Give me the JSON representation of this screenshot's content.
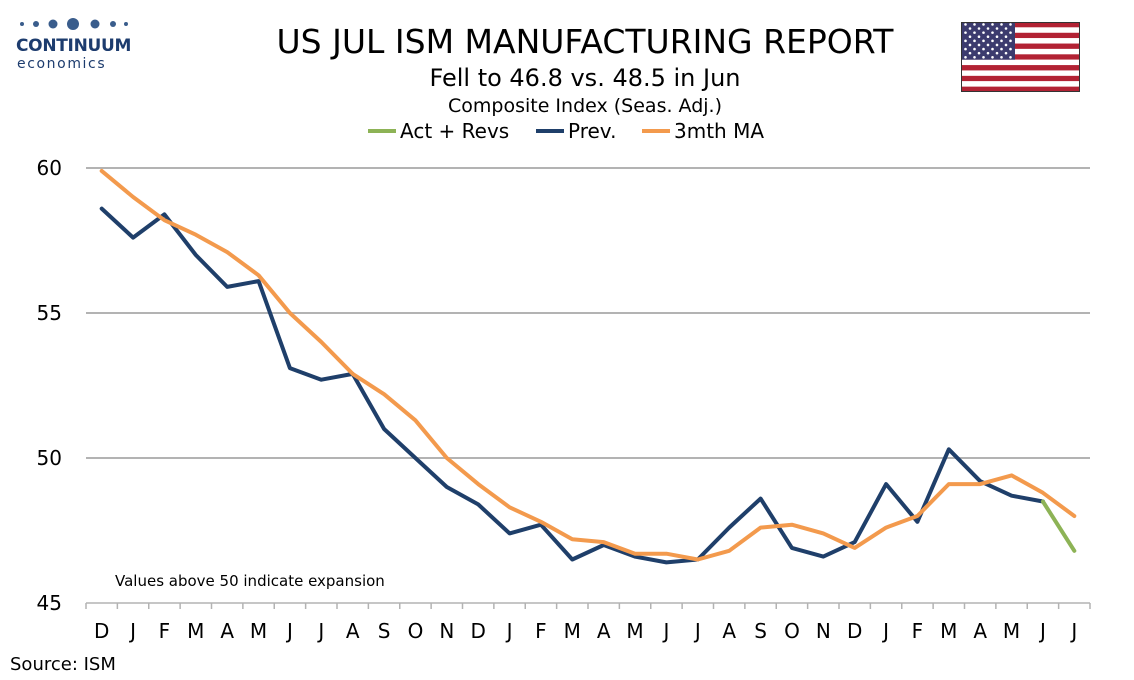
{
  "brand": {
    "name": "CONTINUUM",
    "tagline": "economics"
  },
  "flag_icon": "us-flag-icon",
  "chart_data": {
    "type": "line",
    "title": "US JUL ISM MANUFACTURING REPORT",
    "subtitle": "Fell to 46.8 vs. 48.5 in Jun",
    "subtitle2": "Composite Index (Seas. Adj.)",
    "categories": [
      "D",
      "J",
      "F",
      "M",
      "A",
      "M",
      "J",
      "J",
      "A",
      "S",
      "O",
      "N",
      "D",
      "J",
      "F",
      "M",
      "A",
      "M",
      "J",
      "J",
      "A",
      "S",
      "O",
      "N",
      "D",
      "J",
      "F",
      "M",
      "A",
      "M",
      "J",
      "J"
    ],
    "series": [
      {
        "name": "Act + Revs",
        "color": "#8db356",
        "values": [
          null,
          null,
          null,
          null,
          null,
          null,
          null,
          null,
          null,
          null,
          null,
          null,
          null,
          null,
          null,
          null,
          null,
          null,
          null,
          null,
          null,
          null,
          null,
          null,
          null,
          null,
          null,
          null,
          null,
          null,
          48.5,
          46.8
        ]
      },
      {
        "name": "Prev.",
        "color": "#1f3f6a",
        "values": [
          58.6,
          57.6,
          58.4,
          57.0,
          55.9,
          56.1,
          53.1,
          52.7,
          52.9,
          51.0,
          50.0,
          49.0,
          48.4,
          47.4,
          47.7,
          46.5,
          47.0,
          46.6,
          46.4,
          46.5,
          47.6,
          48.6,
          46.9,
          46.6,
          47.1,
          49.1,
          47.8,
          50.3,
          49.2,
          48.7,
          48.5,
          null
        ]
      },
      {
        "name": "3mth MA",
        "color": "#f39a4d",
        "values": [
          59.9,
          59.0,
          58.2,
          57.7,
          57.1,
          56.3,
          55.0,
          54.0,
          52.9,
          52.2,
          51.3,
          50.0,
          49.1,
          48.3,
          47.8,
          47.2,
          47.1,
          46.7,
          46.7,
          46.5,
          46.8,
          47.6,
          47.7,
          47.4,
          46.9,
          47.6,
          48.0,
          49.1,
          49.1,
          49.4,
          48.8,
          48.0
        ]
      }
    ],
    "ylim": [
      45,
      60
    ],
    "yticks": [
      45,
      50,
      55,
      60
    ],
    "grid": true,
    "legend": "top",
    "annotation": "Values above 50 indicate expansion",
    "source": "Source: ISM"
  }
}
